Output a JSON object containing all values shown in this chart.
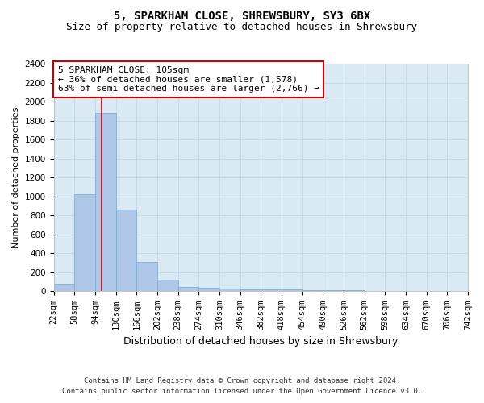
{
  "title": "5, SPARKHAM CLOSE, SHREWSBURY, SY3 6BX",
  "subtitle": "Size of property relative to detached houses in Shrewsbury",
  "xlabel": "Distribution of detached houses by size in Shrewsbury",
  "ylabel": "Number of detached properties",
  "annotation_line1": "5 SPARKHAM CLOSE: 105sqm",
  "annotation_line2": "← 36% of detached houses are smaller (1,578)",
  "annotation_line3": "63% of semi-detached houses are larger (2,766) →",
  "property_size": 105,
  "bar_edges": [
    22,
    58,
    94,
    130,
    166,
    202,
    238,
    274,
    310,
    346,
    382,
    418,
    454,
    490,
    526,
    562,
    598,
    634,
    670,
    706,
    742
  ],
  "bar_heights": [
    80,
    1020,
    1880,
    860,
    310,
    120,
    50,
    35,
    30,
    25,
    20,
    18,
    15,
    12,
    10,
    8,
    6,
    4,
    3,
    2
  ],
  "bar_color": "#aec6e8",
  "bar_edgecolor": "#7bafd4",
  "vline_color": "#cc0000",
  "vline_x": 105,
  "ylim": [
    0,
    2400
  ],
  "yticks": [
    0,
    200,
    400,
    600,
    800,
    1000,
    1200,
    1400,
    1600,
    1800,
    2000,
    2200,
    2400
  ],
  "grid_color": "#c8daea",
  "bg_color": "#daeaf5",
  "annotation_box_facecolor": "#ffffff",
  "annotation_box_edgecolor": "#cc0000",
  "fig_facecolor": "#ffffff",
  "footnote1": "Contains HM Land Registry data © Crown copyright and database right 2024.",
  "footnote2": "Contains public sector information licensed under the Open Government Licence v3.0.",
  "title_fontsize": 10,
  "subtitle_fontsize": 9,
  "xlabel_fontsize": 9,
  "ylabel_fontsize": 8,
  "tick_fontsize": 7.5,
  "annotation_fontsize": 8,
  "footnote_fontsize": 6.5
}
